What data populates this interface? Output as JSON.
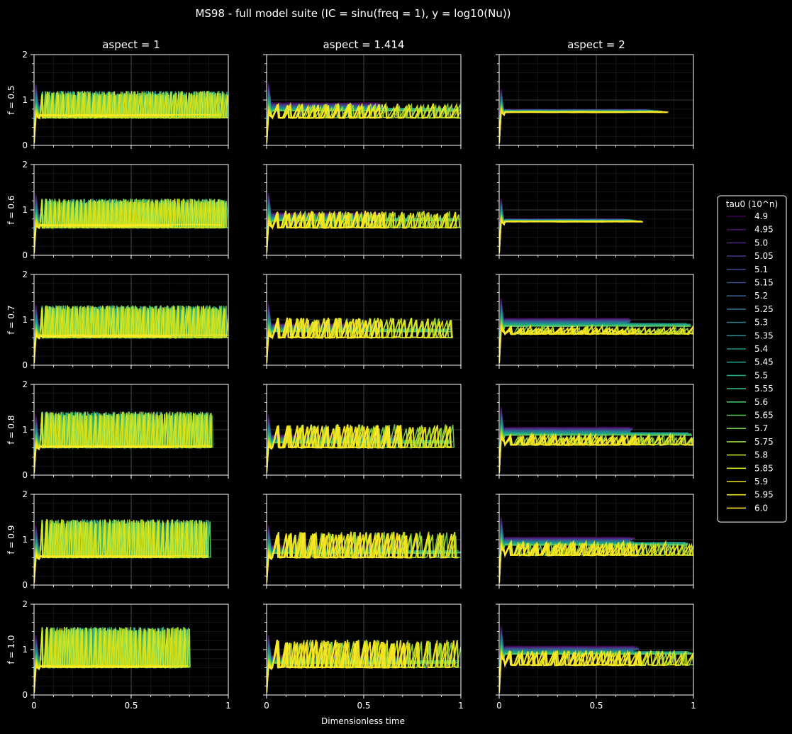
{
  "figure": {
    "title": "MS98 - full model suite (IC = sinu(freq = 1), y = log10(Nu))",
    "xlabel": "Dimensionless time",
    "col_titles": [
      "aspect = 1",
      "aspect = 1.414",
      "aspect = 2"
    ],
    "row_labels": [
      "f = 0.5",
      "f = 0.6",
      "f = 0.7",
      "f = 0.8",
      "f = 0.9",
      "f = 1.0"
    ],
    "background": "#000000",
    "foreground": "#ffffff"
  },
  "legend": {
    "title": "tau0 (10^n)",
    "placement": "right",
    "entries": [
      "4.9",
      "4.95",
      "5.0",
      "5.05",
      "5.1",
      "5.15",
      "5.2",
      "5.25",
      "5.3",
      "5.35",
      "5.4",
      "5.45",
      "5.5",
      "5.55",
      "5.6",
      "5.65",
      "5.7",
      "5.75",
      "5.8",
      "5.85",
      "5.9",
      "5.95",
      "6.0"
    ],
    "colors": [
      "#440154",
      "#481467",
      "#482576",
      "#463480",
      "#414487",
      "#3b528b",
      "#355f8d",
      "#2f6c8e",
      "#2a788e",
      "#25848e",
      "#21918c",
      "#1e9c89",
      "#22a884",
      "#2fb47c",
      "#44bf70",
      "#5ec962",
      "#7ad151",
      "#9bd93c",
      "#bddf26",
      "#dfe318",
      "#f0e51c",
      "#f8e621",
      "#fde725"
    ]
  },
  "chart_data": {
    "type": "line",
    "layout": "grid 6 rows x 3 columns",
    "xlim": [
      0,
      1
    ],
    "ylim": [
      0,
      2
    ],
    "xticks": [
      "0",
      "0.5",
      "1"
    ],
    "yticks": [
      "0",
      "1",
      "2"
    ],
    "grid": true,
    "series_colormap": "viridis",
    "panels": [
      {
        "row": "f = 0.5",
        "col": "aspect = 1",
        "flat_level": 0.65,
        "spike_max": 1.2,
        "spike_min": 0.6,
        "spikes": "dense",
        "t_end_osc": 1.0,
        "t_end_flat": 0.72
      },
      {
        "row": "f = 0.5",
        "col": "aspect = 1.414",
        "flat_level": 0.68,
        "spike_max": 0.92,
        "spike_min": 0.6,
        "spikes": "periodic",
        "t_end_osc": 1.0,
        "t_end_flat": 0.6
      },
      {
        "row": "f = 0.5",
        "col": "aspect = 2",
        "flat_level": 0.73,
        "spike_max": 0.8,
        "spike_min": 0.72,
        "spikes": "none",
        "t_end_flat": 0.87
      },
      {
        "row": "f = 0.6",
        "col": "aspect = 1",
        "flat_level": 0.65,
        "spike_max": 1.25,
        "spike_min": 0.6,
        "spikes": "dense",
        "t_end_osc": 1.0,
        "t_end_flat": 0.72
      },
      {
        "row": "f = 0.6",
        "col": "aspect = 1.414",
        "flat_level": 0.68,
        "spike_max": 0.98,
        "spike_min": 0.6,
        "spikes": "periodic",
        "t_end_osc": 1.0,
        "t_end_flat": 0.62
      },
      {
        "row": "f = 0.6",
        "col": "aspect = 2",
        "flat_level": 0.74,
        "spike_max": 0.85,
        "spike_min": 0.72,
        "spikes": "none",
        "t_end_flat": 0.74
      },
      {
        "row": "f = 0.7",
        "col": "aspect = 1",
        "flat_level": 0.64,
        "spike_max": 1.32,
        "spike_min": 0.6,
        "spikes": "dense",
        "t_end_osc": 1.0,
        "t_end_flat": 0.72
      },
      {
        "row": "f = 0.7",
        "col": "aspect = 1.414",
        "flat_level": 0.66,
        "spike_max": 1.05,
        "spike_min": 0.6,
        "spikes": "periodic",
        "t_end_osc": 0.95,
        "t_end_flat": 0.58
      },
      {
        "row": "f = 0.7",
        "col": "aspect = 2",
        "flat_level": 0.78,
        "spike_max": 0.86,
        "spike_min": 0.68,
        "spikes": "periodic",
        "t_end_osc": 1.0,
        "t_end_flat": 0.68
      },
      {
        "row": "f = 0.8",
        "col": "aspect = 1",
        "flat_level": 0.62,
        "spike_max": 1.4,
        "spike_min": 0.6,
        "spikes": "dense",
        "t_end_osc": 0.92,
        "t_end_flat": 0.72
      },
      {
        "row": "f = 0.8",
        "col": "aspect = 1.414",
        "flat_level": 0.63,
        "spike_max": 1.12,
        "spike_min": 0.6,
        "spikes": "periodic",
        "t_end_osc": 0.96,
        "t_end_flat": 0.7
      },
      {
        "row": "f = 0.8",
        "col": "aspect = 2",
        "flat_level": 0.8,
        "spike_max": 0.9,
        "spike_min": 0.66,
        "spikes": "periodic",
        "t_end_osc": 1.0,
        "t_end_flat": 0.7
      },
      {
        "row": "f = 0.9",
        "col": "aspect = 1",
        "flat_level": 0.62,
        "spike_max": 1.45,
        "spike_min": 0.6,
        "spikes": "dense",
        "t_end_osc": 0.9,
        "t_end_flat": 0.72
      },
      {
        "row": "f = 0.9",
        "col": "aspect = 1.414",
        "flat_level": 0.62,
        "spike_max": 1.18,
        "spike_min": 0.6,
        "spikes": "periodic",
        "t_end_osc": 1.0,
        "t_end_flat": 0.72
      },
      {
        "row": "f = 0.9",
        "col": "aspect = 2",
        "flat_level": 0.8,
        "spike_max": 0.95,
        "spike_min": 0.65,
        "spikes": "periodic",
        "t_end_osc": 1.0,
        "t_end_flat": 0.7
      },
      {
        "row": "f = 1.0",
        "col": "aspect = 1",
        "flat_level": 0.62,
        "spike_max": 1.5,
        "spike_min": 0.6,
        "spikes": "dense",
        "t_end_osc": 0.8,
        "t_end_flat": 0.72
      },
      {
        "row": "f = 1.0",
        "col": "aspect = 1.414",
        "flat_level": 0.62,
        "spike_max": 1.22,
        "spike_min": 0.6,
        "spikes": "periodic",
        "t_end_osc": 1.0,
        "t_end_flat": 0.72
      },
      {
        "row": "f = 1.0",
        "col": "aspect = 2",
        "flat_level": 0.82,
        "spike_max": 0.98,
        "spike_min": 0.65,
        "spikes": "periodic",
        "t_end_osc": 1.0,
        "t_end_flat": 0.72
      }
    ]
  }
}
